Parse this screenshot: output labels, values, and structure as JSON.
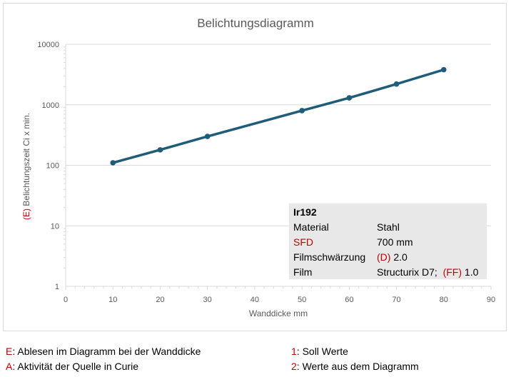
{
  "chart_data": {
    "type": "line",
    "title": "Belichtungsdiagramm",
    "xlabel": "Wanddicke mm",
    "ylabel_prefix": "(E)",
    "ylabel_rest": " Belichtungszeit Ci x min.",
    "xlim": [
      0,
      90
    ],
    "ylim": [
      1,
      10000
    ],
    "y_scale": "log",
    "x_ticks": [
      "0",
      "10",
      "20",
      "30",
      "40",
      "50",
      "60",
      "70",
      "80",
      "90"
    ],
    "y_ticks": [
      "1",
      "10",
      "100",
      "1000",
      "10000"
    ],
    "grid": "horizontal",
    "series": [
      {
        "x": [
          10,
          20,
          30,
          50,
          60,
          70,
          80
        ],
        "y": [
          110,
          180,
          300,
          800,
          1300,
          2200,
          3800
        ],
        "color": "#1f5c7a"
      }
    ]
  },
  "info": {
    "title": "Ir192",
    "rows": [
      {
        "k": "Material",
        "v": "Stahl"
      },
      {
        "k": "SFD",
        "v": "700 mm"
      },
      {
        "k_main": "Filmschwärzung",
        "v_red": "(D)",
        "v_rest": " 2.0"
      },
      {
        "k": "Film",
        "v_main": "Structurix D7;",
        "v_red": "(FF)",
        "v_rest": " 1.0"
      }
    ]
  },
  "footnotes": {
    "e_letter": "E",
    "e_text": ": Ablesen im Diagramm bei der Wanddicke",
    "a_letter": "A",
    "a_text": ": Aktivität der Quelle in Curie",
    "one_num": "1",
    "one_text": ": Soll Werte",
    "two_num": "2",
    "two_text": ": Werte aus dem Diagramm"
  },
  "colors": {
    "line": "#1f5c7a",
    "accent_red": "#c00000",
    "box_bg": "#e8e8e8",
    "grid": "#d9d9d9"
  }
}
